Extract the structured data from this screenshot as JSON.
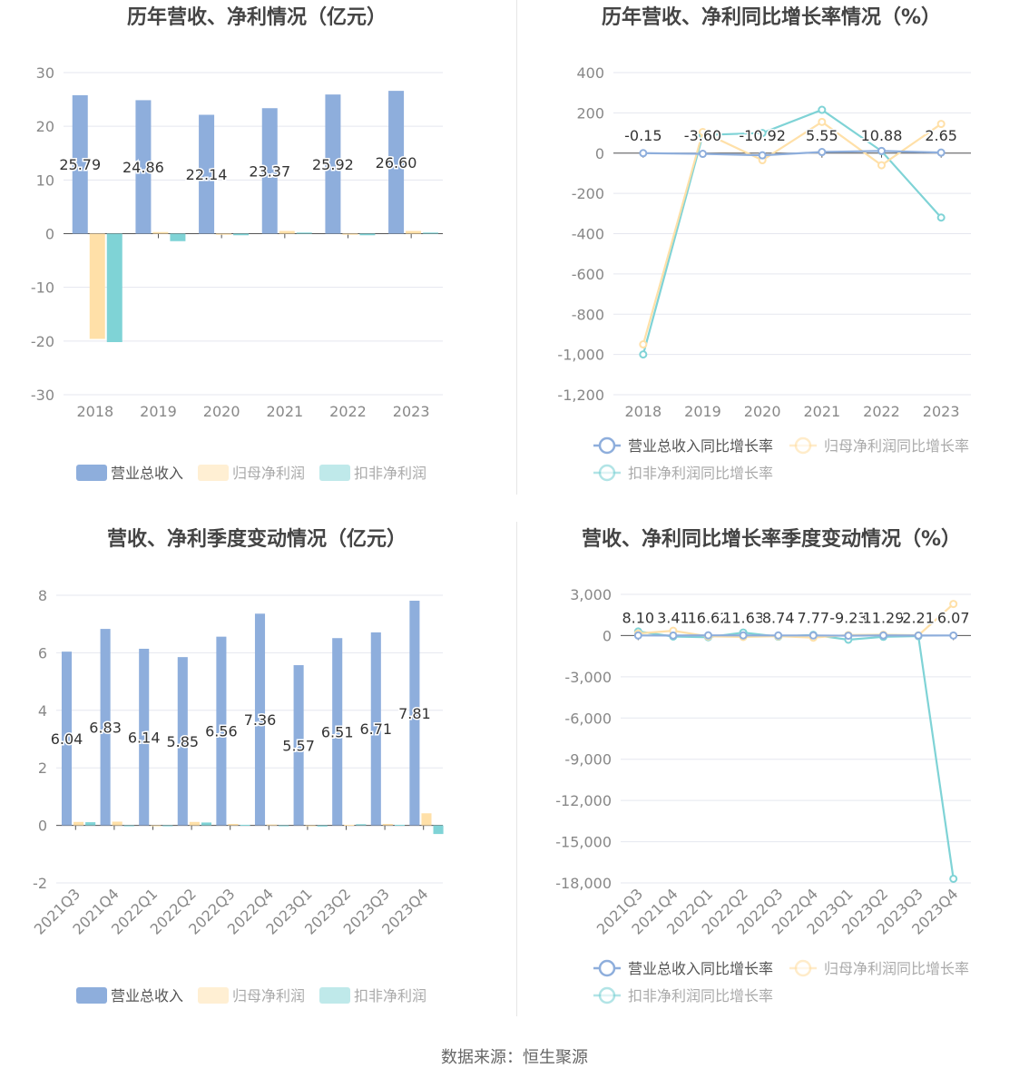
{
  "colors": {
    "revenue": "#8EAEDC",
    "net_profit": "#FFE0A8",
    "deducted_profit": "#7FD3D6",
    "grid": "#E5E7EF",
    "axis_label": "#888888",
    "title": "#444444",
    "data_label": "#333333"
  },
  "source": "数据来源：恒生聚源",
  "chart_data": [
    {
      "type": "bar",
      "title": "历年营收、净利情况（亿元）",
      "categories": [
        "2018",
        "2019",
        "2020",
        "2021",
        "2022",
        "2023"
      ],
      "yticks": [
        "30",
        "20",
        "10",
        "0",
        "-10",
        "-20",
        "-30"
      ],
      "ylim": [
        -30,
        30
      ],
      "series": [
        {
          "name": "营业总收入",
          "values": [
            25.79,
            24.86,
            22.14,
            23.37,
            25.92,
            26.6
          ],
          "labels": [
            "25.79",
            "24.86",
            "22.14",
            "23.37",
            "25.92",
            "26.60"
          ]
        },
        {
          "name": "归母净利润",
          "values": [
            -19.6,
            0.3,
            -0.2,
            0.5,
            -0.2,
            0.5
          ]
        },
        {
          "name": "扣非净利润",
          "values": [
            -20.2,
            -1.4,
            -0.3,
            0.2,
            -0.3,
            0.2
          ]
        }
      ],
      "legend": "bottom"
    },
    {
      "type": "line",
      "title": "历年营收、净利同比增长率情况（%）",
      "categories": [
        "2018",
        "2019",
        "2020",
        "2021",
        "2022",
        "2023"
      ],
      "yticks": [
        "400",
        "200",
        "0",
        "-200",
        "-400",
        "-600",
        "-800",
        "-1,000",
        "-1,200"
      ],
      "ylim": [
        -1200,
        400
      ],
      "series": [
        {
          "name": "营业总收入同比增长率",
          "values": [
            -0.15,
            -3.6,
            -10.92,
            5.55,
            10.88,
            2.65
          ],
          "labels": [
            "-0.15",
            "-3.60",
            "-10.92",
            "5.55",
            "10.88",
            "2.65"
          ]
        },
        {
          "name": "归母净利润同比增长率",
          "values": [
            -950,
            105,
            -35,
            155,
            -60,
            145
          ]
        },
        {
          "name": "扣非净利润同比增长率",
          "values": [
            -1000,
            90,
            100,
            215,
            10,
            -320
          ]
        }
      ],
      "legend": "bottom"
    },
    {
      "type": "bar",
      "title": "营收、净利季度变动情况（亿元）",
      "categories": [
        "2021Q3",
        "2021Q4",
        "2022Q1",
        "2022Q2",
        "2022Q3",
        "2022Q4",
        "2023Q1",
        "2023Q2",
        "2023Q3",
        "2023Q4"
      ],
      "yticks": [
        "8",
        "6",
        "4",
        "2",
        "0",
        "-2"
      ],
      "ylim": [
        -2,
        8
      ],
      "series": [
        {
          "name": "营业总收入",
          "values": [
            6.04,
            6.83,
            6.14,
            5.85,
            6.56,
            7.36,
            5.57,
            6.51,
            6.71,
            7.81
          ],
          "labels": [
            "6.04",
            "6.83",
            "6.14",
            "5.85",
            "6.56",
            "7.36",
            "5.57",
            "6.51",
            "6.71",
            "7.81"
          ]
        },
        {
          "name": "归母净利润",
          "values": [
            0.12,
            0.13,
            -0.02,
            0.12,
            0.05,
            0.03,
            -0.02,
            0.02,
            0.05,
            0.42
          ]
        },
        {
          "name": "扣非净利润",
          "values": [
            0.11,
            -0.03,
            -0.03,
            0.1,
            0.02,
            -0.02,
            -0.04,
            0.04,
            0.02,
            -0.3
          ]
        }
      ],
      "legend": "bottom"
    },
    {
      "type": "line",
      "title": "营收、净利同比增长率季度变动情况（%）",
      "categories": [
        "2021Q3",
        "2021Q4",
        "2022Q1",
        "2022Q2",
        "2022Q3",
        "2022Q4",
        "2023Q1",
        "2023Q2",
        "2023Q3",
        "2023Q4"
      ],
      "yticks": [
        "3,000",
        "0",
        "-3,000",
        "-6,000",
        "-9,000",
        "-12,000",
        "-15,000",
        "-18,000"
      ],
      "ylim": [
        -18000,
        3000
      ],
      "series": [
        {
          "name": "营业总收入同比增长率",
          "values": [
            8.1,
            3.41,
            16.62,
            11.63,
            8.74,
            7.77,
            -9.23,
            11.29,
            2.21,
            6.07
          ],
          "labels": [
            "8.10",
            "3.41",
            "16.62",
            "11.63",
            "8.74",
            "7.77",
            "-9.23",
            "11.29",
            "2.21",
            "6.07"
          ]
        },
        {
          "name": "归母净利润同比增长率",
          "values": [
            150,
            350,
            -60,
            -100,
            -50,
            -150,
            40,
            60,
            20,
            2300
          ]
        },
        {
          "name": "扣非净利润同比增长率",
          "values": [
            300,
            -70,
            -120,
            220,
            -80,
            50,
            -300,
            -90,
            -40,
            -17700
          ]
        }
      ],
      "legend": "bottom"
    }
  ]
}
